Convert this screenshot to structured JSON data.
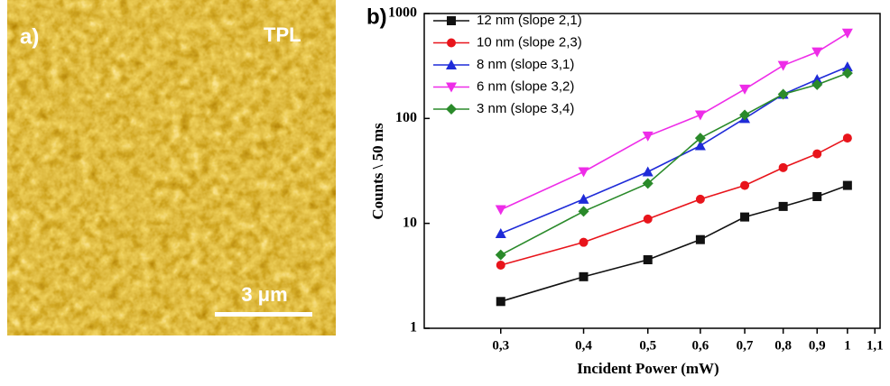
{
  "panel_a": {
    "label": "a)",
    "title": "TPL",
    "scale_bar": "3 μm"
  },
  "chart_data": {
    "type": "line",
    "panel_label": "b)",
    "x_label": "Incident Power (mW)",
    "y_label": "Counts \\ 50 ms",
    "x": [
      0.3,
      0.4,
      0.5,
      0.6,
      0.7,
      0.8,
      0.9,
      1
    ],
    "xlim": [
      0.23,
      1.12
    ],
    "ylim": [
      1,
      1000
    ],
    "log_x": true,
    "log_y": true,
    "xticks": [
      {
        "value": 0.3,
        "label": "0,3"
      },
      {
        "value": 0.4,
        "label": "0,4"
      },
      {
        "value": 0.5,
        "label": "0,5"
      },
      {
        "value": 0.6,
        "label": "0,6"
      },
      {
        "value": 0.7,
        "label": "0,7"
      },
      {
        "value": 0.8,
        "label": "0,8"
      },
      {
        "value": 0.9,
        "label": "0,9"
      },
      1,
      {
        "value": 1.1,
        "label": "1,1"
      }
    ],
    "yticks": [
      1,
      10,
      100,
      1000
    ],
    "legend": "upper left",
    "series": [
      {
        "name": "12 nm (slope 2,1)",
        "color": "#111111",
        "marker": "square",
        "values": [
          1.8,
          3.1,
          4.5,
          7,
          11.5,
          14.5,
          18,
          23
        ]
      },
      {
        "name": "10 nm (slope 2,3)",
        "color": "#e8141b",
        "marker": "circle",
        "values": [
          4,
          6.6,
          11,
          17,
          23,
          34,
          46,
          65
        ]
      },
      {
        "name": "8 nm (slope 3,1)",
        "color": "#1f2bd8",
        "marker": "triangle-up",
        "values": [
          8,
          17,
          31,
          55,
          100,
          170,
          235,
          310
        ]
      },
      {
        "name": "6 nm (slope 3,2)",
        "color": "#ee2ce8",
        "marker": "triangle-down",
        "values": [
          13.5,
          31,
          68,
          108,
          190,
          320,
          430,
          650
        ]
      },
      {
        "name": "3 nm (slope 3,4)",
        "color": "#2a8a2a",
        "marker": "diamond",
        "values": [
          5,
          13,
          24,
          65,
          108,
          170,
          210,
          270
        ]
      }
    ]
  }
}
